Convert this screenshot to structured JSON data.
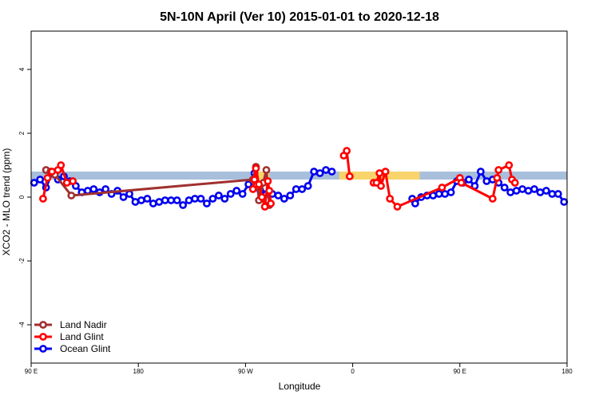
{
  "chart_data": {
    "type": "line",
    "title": "5N-10N April (Ver 10)   2015-01-01 to 2020-12-18",
    "xlabel": "Longitude",
    "ylabel": "XCO2 - MLO trend (ppm)",
    "xlim": [
      -90,
      270
    ],
    "ylim": [
      -5.2,
      5.2
    ],
    "x_ticks": [
      {
        "value": -90,
        "label": "90 E"
      },
      {
        "value": -18,
        "label": "180"
      },
      {
        "value": 54,
        "label": "90 W"
      },
      {
        "value": 126,
        "label": "0"
      },
      {
        "value": 198,
        "label": "90 E"
      },
      {
        "value": 270,
        "label": "180"
      }
    ],
    "y_ticks": [
      {
        "value": -4,
        "label": "-4"
      },
      {
        "value": -2,
        "label": "-2"
      },
      {
        "value": 0,
        "label": "0"
      },
      {
        "value": 2,
        "label": "2"
      },
      {
        "value": 4,
        "label": "4"
      }
    ],
    "band": {
      "y_range": [
        0.55,
        0.8
      ],
      "base_color": "#a8bfdc",
      "land_color": "#f9d36b",
      "land_x": [
        [
          60,
          70
        ],
        [
          117,
          171
        ],
        [
          152,
          162
        ]
      ]
    },
    "legend": {
      "position": "bottom-left"
    },
    "series": [
      {
        "name": "Land Nadir",
        "color": "#a03030",
        "x": [
          -80,
          -77,
          -74,
          -63,
          59,
          61,
          63,
          66,
          68,
          70
        ],
        "y": [
          0.85,
          0.8,
          0.7,
          0.05,
          0.55,
          0.95,
          -0.1,
          0.45,
          0.85,
          -0.25
        ]
      },
      {
        "name": "Land Glint",
        "color": "#ff0000",
        "x": [
          -82,
          -79,
          -76,
          -72,
          -70,
          -66,
          -62,
          59,
          60,
          61,
          63,
          65,
          67,
          69,
          70,
          71,
          120,
          122,
          124,
          140,
          142,
          144,
          145,
          148,
          151,
          156,
          186,
          198,
          199,
          220,
          223,
          224,
          231,
          233,
          235
        ],
        "y": [
          -0.05,
          0.6,
          0.8,
          0.85,
          1.0,
          0.45,
          0.5,
          0.25,
          0.55,
          0.9,
          0.4,
          0.0,
          -0.3,
          0.5,
          0.2,
          -0.2,
          1.3,
          1.45,
          0.65,
          0.45,
          0.45,
          0.75,
          0.35,
          0.8,
          -0.05,
          -0.3,
          0.3,
          0.6,
          0.45,
          -0.05,
          0.6,
          0.85,
          1.0,
          0.55,
          0.45
        ],
        "gaps_after": [
          6,
          15,
          18
        ]
      },
      {
        "name": "Ocean Glint",
        "color": "#0000ee",
        "x": [
          -88,
          -84,
          -80,
          -76,
          -72,
          -68,
          -64,
          -60,
          -56,
          -52,
          -48,
          -44,
          -40,
          -36,
          -32,
          -28,
          -24,
          -20,
          -16,
          -12,
          -8,
          -4,
          0,
          4,
          8,
          12,
          16,
          20,
          24,
          28,
          32,
          36,
          40,
          44,
          48,
          52,
          56,
          60,
          64,
          68,
          72,
          76,
          80,
          84,
          88,
          92,
          96,
          100,
          104,
          108,
          112,
          166,
          168,
          172,
          176,
          180,
          184,
          188,
          192,
          196,
          200,
          204,
          208,
          212,
          216,
          220,
          224,
          228,
          232,
          236,
          240,
          244,
          248,
          252,
          256,
          260,
          264,
          268
        ],
        "y": [
          0.45,
          0.55,
          0.3,
          0.75,
          0.55,
          0.65,
          0.5,
          0.35,
          0.15,
          0.2,
          0.25,
          0.15,
          0.25,
          0.1,
          0.2,
          0.0,
          0.1,
          -0.15,
          -0.1,
          -0.05,
          -0.2,
          -0.15,
          -0.1,
          -0.1,
          -0.1,
          -0.25,
          -0.1,
          -0.05,
          -0.05,
          -0.2,
          -0.05,
          0.05,
          -0.05,
          0.1,
          0.2,
          0.1,
          0.4,
          0.75,
          0.2,
          0.1,
          0.1,
          0.05,
          -0.05,
          0.05,
          0.25,
          0.25,
          0.35,
          0.8,
          0.75,
          0.85,
          0.8,
          -0.05,
          -0.2,
          0.0,
          0.05,
          0.05,
          0.1,
          0.1,
          0.15,
          0.5,
          0.45,
          0.55,
          0.35,
          0.8,
          0.5,
          0.55,
          0.45,
          0.3,
          0.15,
          0.2,
          0.25,
          0.2,
          0.25,
          0.15,
          0.2,
          0.1,
          0.1,
          -0.15
        ],
        "gaps_after": [
          50
        ]
      }
    ]
  }
}
